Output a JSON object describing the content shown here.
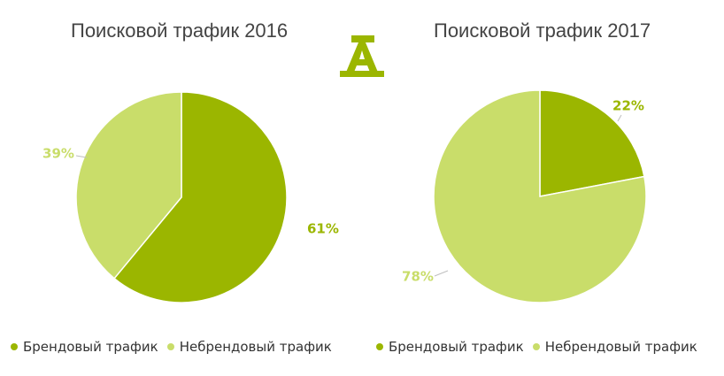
{
  "colors": {
    "branded": "#9bb600",
    "nonbranded": "#c9dd6a",
    "title": "#444444",
    "text": "#333333"
  },
  "logo_icon": "alfa-a-logo-icon",
  "chart_data": [
    {
      "type": "pie",
      "title": "Поисковой трафик 2016",
      "slices": [
        {
          "label": "Брендовый трафик",
          "value": 61,
          "display": "61%"
        },
        {
          "label": "Небрендовый трафик",
          "value": 39,
          "display": "39%"
        }
      ],
      "legend": [
        "Брендовый трафик",
        "Небрендовый трафик"
      ],
      "legend_position": "bottom"
    },
    {
      "type": "pie",
      "title": "Поисковой трафик 2017",
      "slices": [
        {
          "label": "Брендовый трафик",
          "value": 22,
          "display": "22%"
        },
        {
          "label": "Небрендовый трафик",
          "value": 78,
          "display": "78%"
        }
      ],
      "legend": [
        "Брендовый трафик",
        "Небрендовый трафик"
      ],
      "legend_position": "bottom"
    }
  ]
}
